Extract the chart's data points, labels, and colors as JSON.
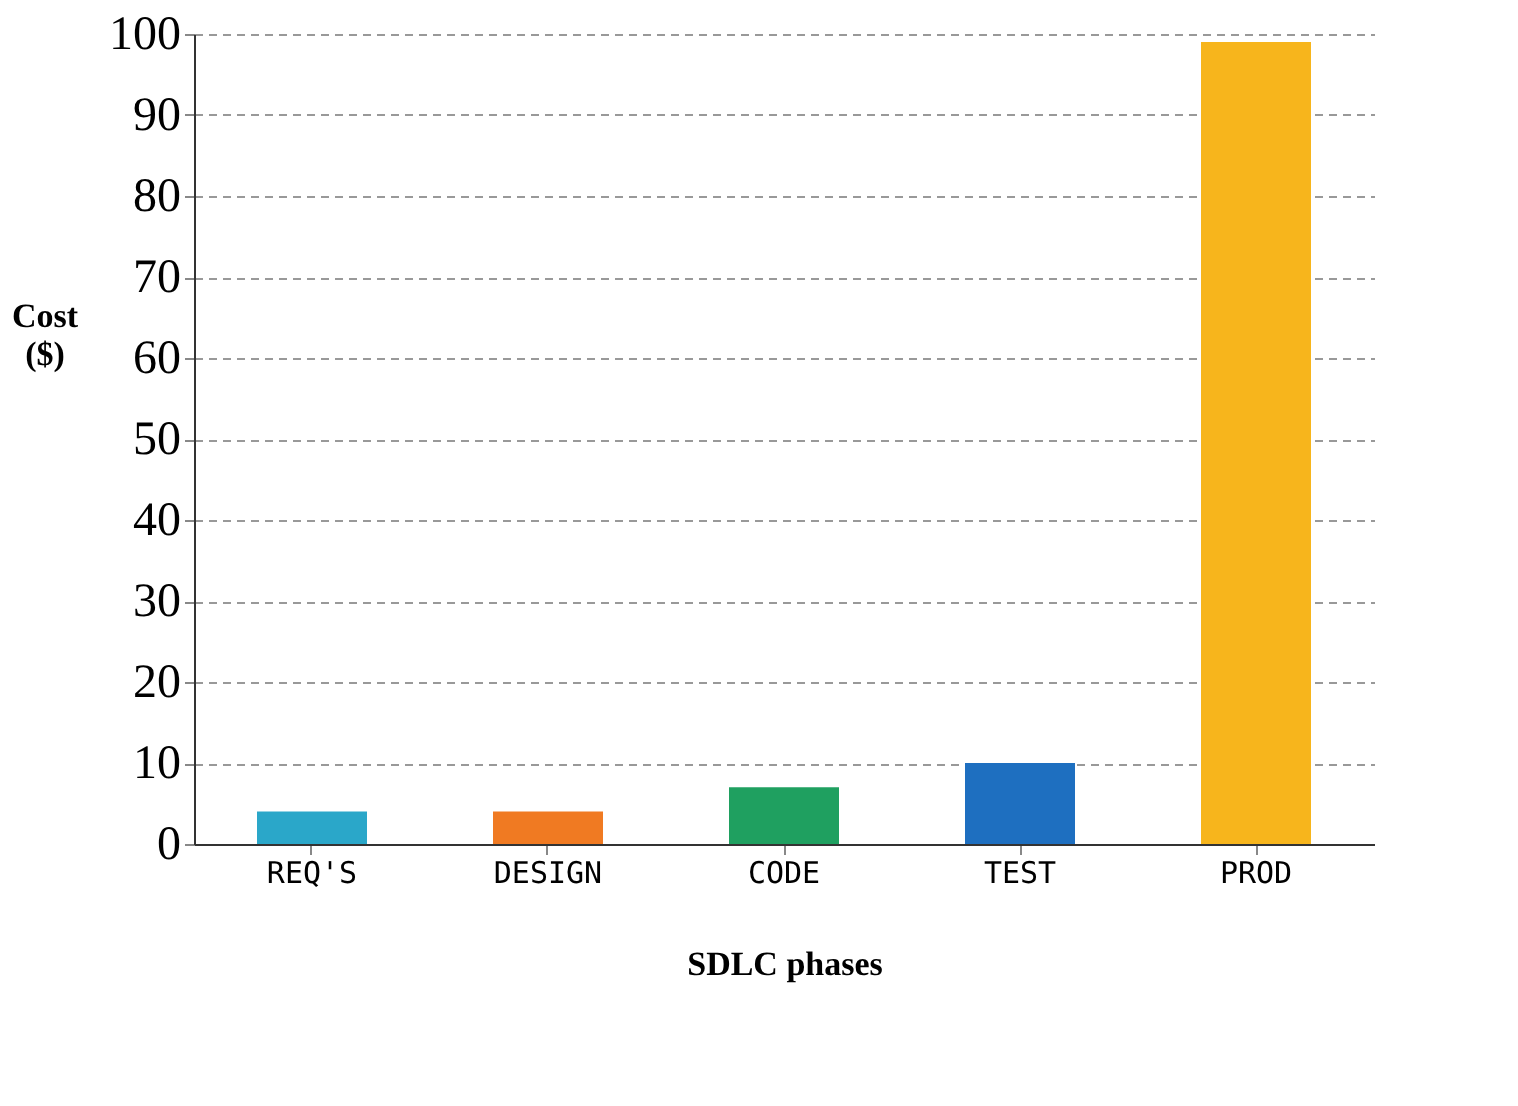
{
  "chart_data": {
    "type": "bar",
    "xlabel": "SDLC phases",
    "ylabel": "Cost ($)",
    "categories": [
      "REQ'S",
      "DESIGN",
      "CODE",
      "TEST",
      "PROD"
    ],
    "values": [
      4,
      4,
      7,
      10,
      99
    ],
    "colors": [
      "#2aa7c9",
      "#f07a22",
      "#1fa060",
      "#1e6fc0",
      "#f7b51c"
    ],
    "ylim": [
      0,
      100
    ],
    "yticks": [
      0,
      10,
      20,
      30,
      40,
      50,
      60,
      70,
      80,
      90,
      100
    ],
    "grid": "y",
    "legend": false
  }
}
